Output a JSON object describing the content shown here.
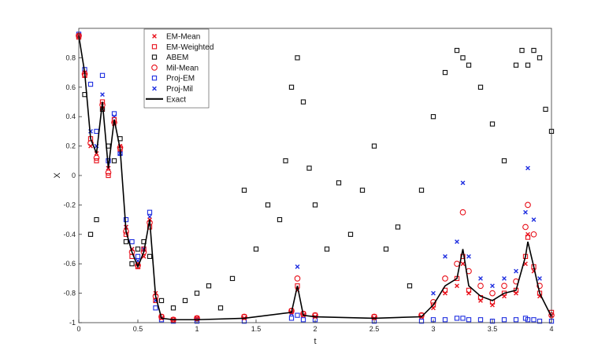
{
  "chart_data": {
    "type": "scatter",
    "xlabel": "t",
    "ylabel": "X",
    "xlim": [
      0,
      4
    ],
    "ylim": [
      -1,
      1
    ],
    "xticks": [
      0,
      0.5,
      1,
      1.5,
      2,
      2.5,
      3,
      3.5,
      4
    ],
    "xtick_labels": [
      "0",
      "0.5",
      "1",
      "1.5",
      "2",
      "2.5",
      "3",
      "3.5",
      "4"
    ],
    "yticks": [
      -1,
      -0.8,
      -0.6,
      -0.4,
      -0.2,
      0,
      0.2,
      0.4,
      0.6,
      0.8
    ],
    "ytick_labels": [
      "-1",
      "-0.8",
      "-0.6",
      "-0.4",
      "-0.2",
      "0",
      "0.2",
      "0.4",
      "0.6",
      "0.8"
    ],
    "grid": false,
    "legend_position": "top-left",
    "series": [
      {
        "name": "EM-Mean",
        "marker": "x",
        "color": "#e8101a",
        "x": [
          0.0,
          0.05,
          0.1,
          0.15,
          0.2,
          0.25,
          0.3,
          0.35,
          0.4,
          0.45,
          0.5,
          0.55,
          0.6,
          0.65,
          0.7,
          0.8,
          1.0,
          1.4,
          1.8,
          1.85,
          1.9,
          2.0,
          2.5,
          2.9,
          3.0,
          3.1,
          3.2,
          3.25,
          3.3,
          3.4,
          3.5,
          3.6,
          3.7,
          3.78,
          3.8,
          3.85,
          3.9,
          4.0
        ],
        "y": [
          0.95,
          0.7,
          0.2,
          0.15,
          0.45,
          0.05,
          0.35,
          0.2,
          -0.35,
          -0.5,
          -0.6,
          -0.55,
          -0.3,
          -0.8,
          -0.97,
          -0.98,
          -0.97,
          -0.97,
          -0.93,
          -0.78,
          -0.95,
          -0.96,
          -0.97,
          -0.96,
          -0.9,
          -0.8,
          -0.75,
          -0.6,
          -0.8,
          -0.85,
          -0.88,
          -0.82,
          -0.8,
          -0.6,
          -0.4,
          -0.65,
          -0.82,
          -0.95
        ]
      },
      {
        "name": "EM-Weighted",
        "marker": "square",
        "color": "#e8101a",
        "x": [
          0.0,
          0.05,
          0.1,
          0.15,
          0.2,
          0.25,
          0.3,
          0.35,
          0.4,
          0.45,
          0.5,
          0.55,
          0.6,
          0.65,
          0.7,
          0.8,
          1.0,
          1.4,
          1.8,
          1.85,
          1.9,
          2.0,
          2.5,
          2.9,
          3.0,
          3.1,
          3.2,
          3.25,
          3.3,
          3.4,
          3.5,
          3.6,
          3.7,
          3.78,
          3.8,
          3.85,
          3.9,
          4.0
        ],
        "y": [
          0.94,
          0.68,
          0.25,
          0.1,
          0.5,
          0.0,
          0.38,
          0.18,
          -0.4,
          -0.55,
          -0.62,
          -0.5,
          -0.35,
          -0.85,
          -0.96,
          -0.98,
          -0.97,
          -0.96,
          -0.92,
          -0.75,
          -0.94,
          -0.95,
          -0.96,
          -0.95,
          -0.88,
          -0.78,
          -0.7,
          -0.55,
          -0.78,
          -0.83,
          -0.86,
          -0.8,
          -0.78,
          -0.55,
          -0.42,
          -0.62,
          -0.8,
          -0.93
        ]
      },
      {
        "name": "ABEM",
        "marker": "square",
        "color": "#111111",
        "x": [
          0.0,
          0.05,
          0.1,
          0.15,
          0.2,
          0.25,
          0.3,
          0.35,
          0.4,
          0.45,
          0.5,
          0.55,
          0.6,
          0.7,
          0.8,
          0.9,
          1.0,
          1.1,
          1.2,
          1.3,
          1.4,
          1.5,
          1.6,
          1.7,
          1.75,
          1.8,
          1.85,
          1.9,
          1.95,
          2.0,
          2.1,
          2.2,
          2.3,
          2.4,
          2.5,
          2.6,
          2.7,
          2.8,
          2.9,
          3.0,
          3.1,
          3.2,
          3.25,
          3.3,
          3.4,
          3.5,
          3.6,
          3.7,
          3.75,
          3.8,
          3.85,
          3.9,
          3.95,
          4.0
        ],
        "y": [
          0.95,
          0.55,
          -0.4,
          -0.3,
          0.45,
          0.2,
          0.1,
          0.25,
          -0.45,
          -0.6,
          -0.5,
          -0.45,
          -0.55,
          -0.85,
          -0.9,
          -0.85,
          -0.8,
          -0.75,
          -0.9,
          -0.7,
          -0.1,
          -0.5,
          -0.2,
          -0.3,
          0.1,
          0.6,
          0.8,
          0.5,
          0.05,
          -0.2,
          -0.5,
          -0.05,
          -0.4,
          -0.1,
          0.2,
          -0.5,
          -0.35,
          -0.75,
          -0.1,
          0.4,
          0.7,
          0.85,
          0.8,
          0.75,
          0.6,
          0.35,
          0.1,
          0.75,
          0.85,
          0.75,
          0.85,
          0.8,
          0.45,
          0.3
        ]
      },
      {
        "name": "Mil-Mean",
        "marker": "circle",
        "color": "#e8101a",
        "x": [
          0.0,
          0.05,
          0.1,
          0.15,
          0.2,
          0.25,
          0.3,
          0.35,
          0.4,
          0.45,
          0.5,
          0.55,
          0.6,
          0.65,
          0.7,
          0.8,
          1.0,
          1.4,
          1.8,
          1.85,
          1.9,
          2.0,
          2.5,
          2.9,
          3.0,
          3.1,
          3.2,
          3.25,
          3.3,
          3.4,
          3.5,
          3.6,
          3.7,
          3.78,
          3.8,
          3.85,
          3.9,
          4.0
        ],
        "y": [
          0.95,
          0.69,
          0.22,
          0.12,
          0.48,
          0.02,
          0.36,
          0.19,
          -0.38,
          -0.52,
          -0.61,
          -0.52,
          -0.32,
          -0.82,
          -0.96,
          -0.98,
          -0.97,
          -0.96,
          -0.92,
          -0.7,
          -0.94,
          -0.95,
          -0.96,
          -0.95,
          -0.86,
          -0.7,
          -0.6,
          -0.25,
          -0.65,
          -0.75,
          -0.8,
          -0.75,
          -0.72,
          -0.35,
          -0.2,
          -0.4,
          -0.75,
          -0.95
        ]
      },
      {
        "name": "Proj-EM",
        "marker": "square",
        "color": "#1f2fe0",
        "x": [
          0.0,
          0.05,
          0.1,
          0.15,
          0.2,
          0.25,
          0.3,
          0.35,
          0.4,
          0.45,
          0.5,
          0.55,
          0.6,
          0.65,
          0.7,
          0.8,
          1.0,
          1.4,
          1.8,
          1.85,
          1.9,
          2.0,
          2.5,
          2.9,
          3.0,
          3.1,
          3.2,
          3.25,
          3.3,
          3.4,
          3.5,
          3.6,
          3.7,
          3.78,
          3.8,
          3.85,
          3.9,
          4.0
        ],
        "y": [
          0.96,
          0.72,
          0.62,
          0.3,
          0.68,
          0.1,
          0.42,
          0.15,
          -0.3,
          -0.45,
          -0.55,
          -0.5,
          -0.25,
          -0.9,
          -0.98,
          -0.99,
          -0.99,
          -0.99,
          -0.97,
          -0.95,
          -0.98,
          -0.98,
          -0.99,
          -0.99,
          -0.98,
          -0.98,
          -0.97,
          -0.97,
          -0.98,
          -0.98,
          -0.99,
          -0.98,
          -0.98,
          -0.97,
          -0.98,
          -0.98,
          -0.99,
          -0.99
        ]
      },
      {
        "name": "Proj-Mil",
        "marker": "x",
        "color": "#1f2fe0",
        "x": [
          0.0,
          0.05,
          0.1,
          0.15,
          0.2,
          0.25,
          0.3,
          0.35,
          0.4,
          0.45,
          0.5,
          0.55,
          0.6,
          0.65,
          0.7,
          0.8,
          1.0,
          1.4,
          1.8,
          1.85,
          1.9,
          2.0,
          2.5,
          2.9,
          3.0,
          3.1,
          3.2,
          3.25,
          3.3,
          3.4,
          3.5,
          3.6,
          3.7,
          3.78,
          3.8,
          3.85,
          3.9,
          4.0
        ],
        "y": [
          0.95,
          0.7,
          0.3,
          0.2,
          0.55,
          0.05,
          0.4,
          0.15,
          -0.35,
          -0.5,
          -0.58,
          -0.5,
          -0.28,
          -0.85,
          -0.97,
          -0.98,
          -0.98,
          -0.97,
          -0.94,
          -0.62,
          -0.95,
          -0.96,
          -0.97,
          -0.96,
          -0.8,
          -0.55,
          -0.45,
          -0.05,
          -0.55,
          -0.7,
          -0.75,
          -0.7,
          -0.65,
          -0.25,
          0.05,
          -0.3,
          -0.7,
          -0.95
        ]
      },
      {
        "name": "Exact",
        "marker": "line",
        "color": "#000000",
        "x": [
          0.0,
          0.05,
          0.1,
          0.15,
          0.2,
          0.25,
          0.3,
          0.35,
          0.4,
          0.45,
          0.5,
          0.55,
          0.6,
          0.65,
          0.7,
          0.8,
          1.0,
          1.4,
          1.8,
          1.85,
          1.9,
          2.0,
          2.5,
          2.9,
          3.0,
          3.1,
          3.2,
          3.25,
          3.3,
          3.4,
          3.5,
          3.6,
          3.7,
          3.78,
          3.8,
          3.85,
          3.9,
          4.0
        ],
        "y": [
          0.95,
          0.7,
          0.25,
          0.15,
          0.5,
          0.05,
          0.38,
          0.18,
          -0.38,
          -0.52,
          -0.62,
          -0.52,
          -0.3,
          -0.82,
          -0.97,
          -0.98,
          -0.98,
          -0.97,
          -0.93,
          -0.75,
          -0.95,
          -0.96,
          -0.97,
          -0.96,
          -0.88,
          -0.75,
          -0.7,
          -0.5,
          -0.75,
          -0.82,
          -0.85,
          -0.8,
          -0.78,
          -0.55,
          -0.45,
          -0.62,
          -0.8,
          -0.96
        ]
      }
    ]
  }
}
